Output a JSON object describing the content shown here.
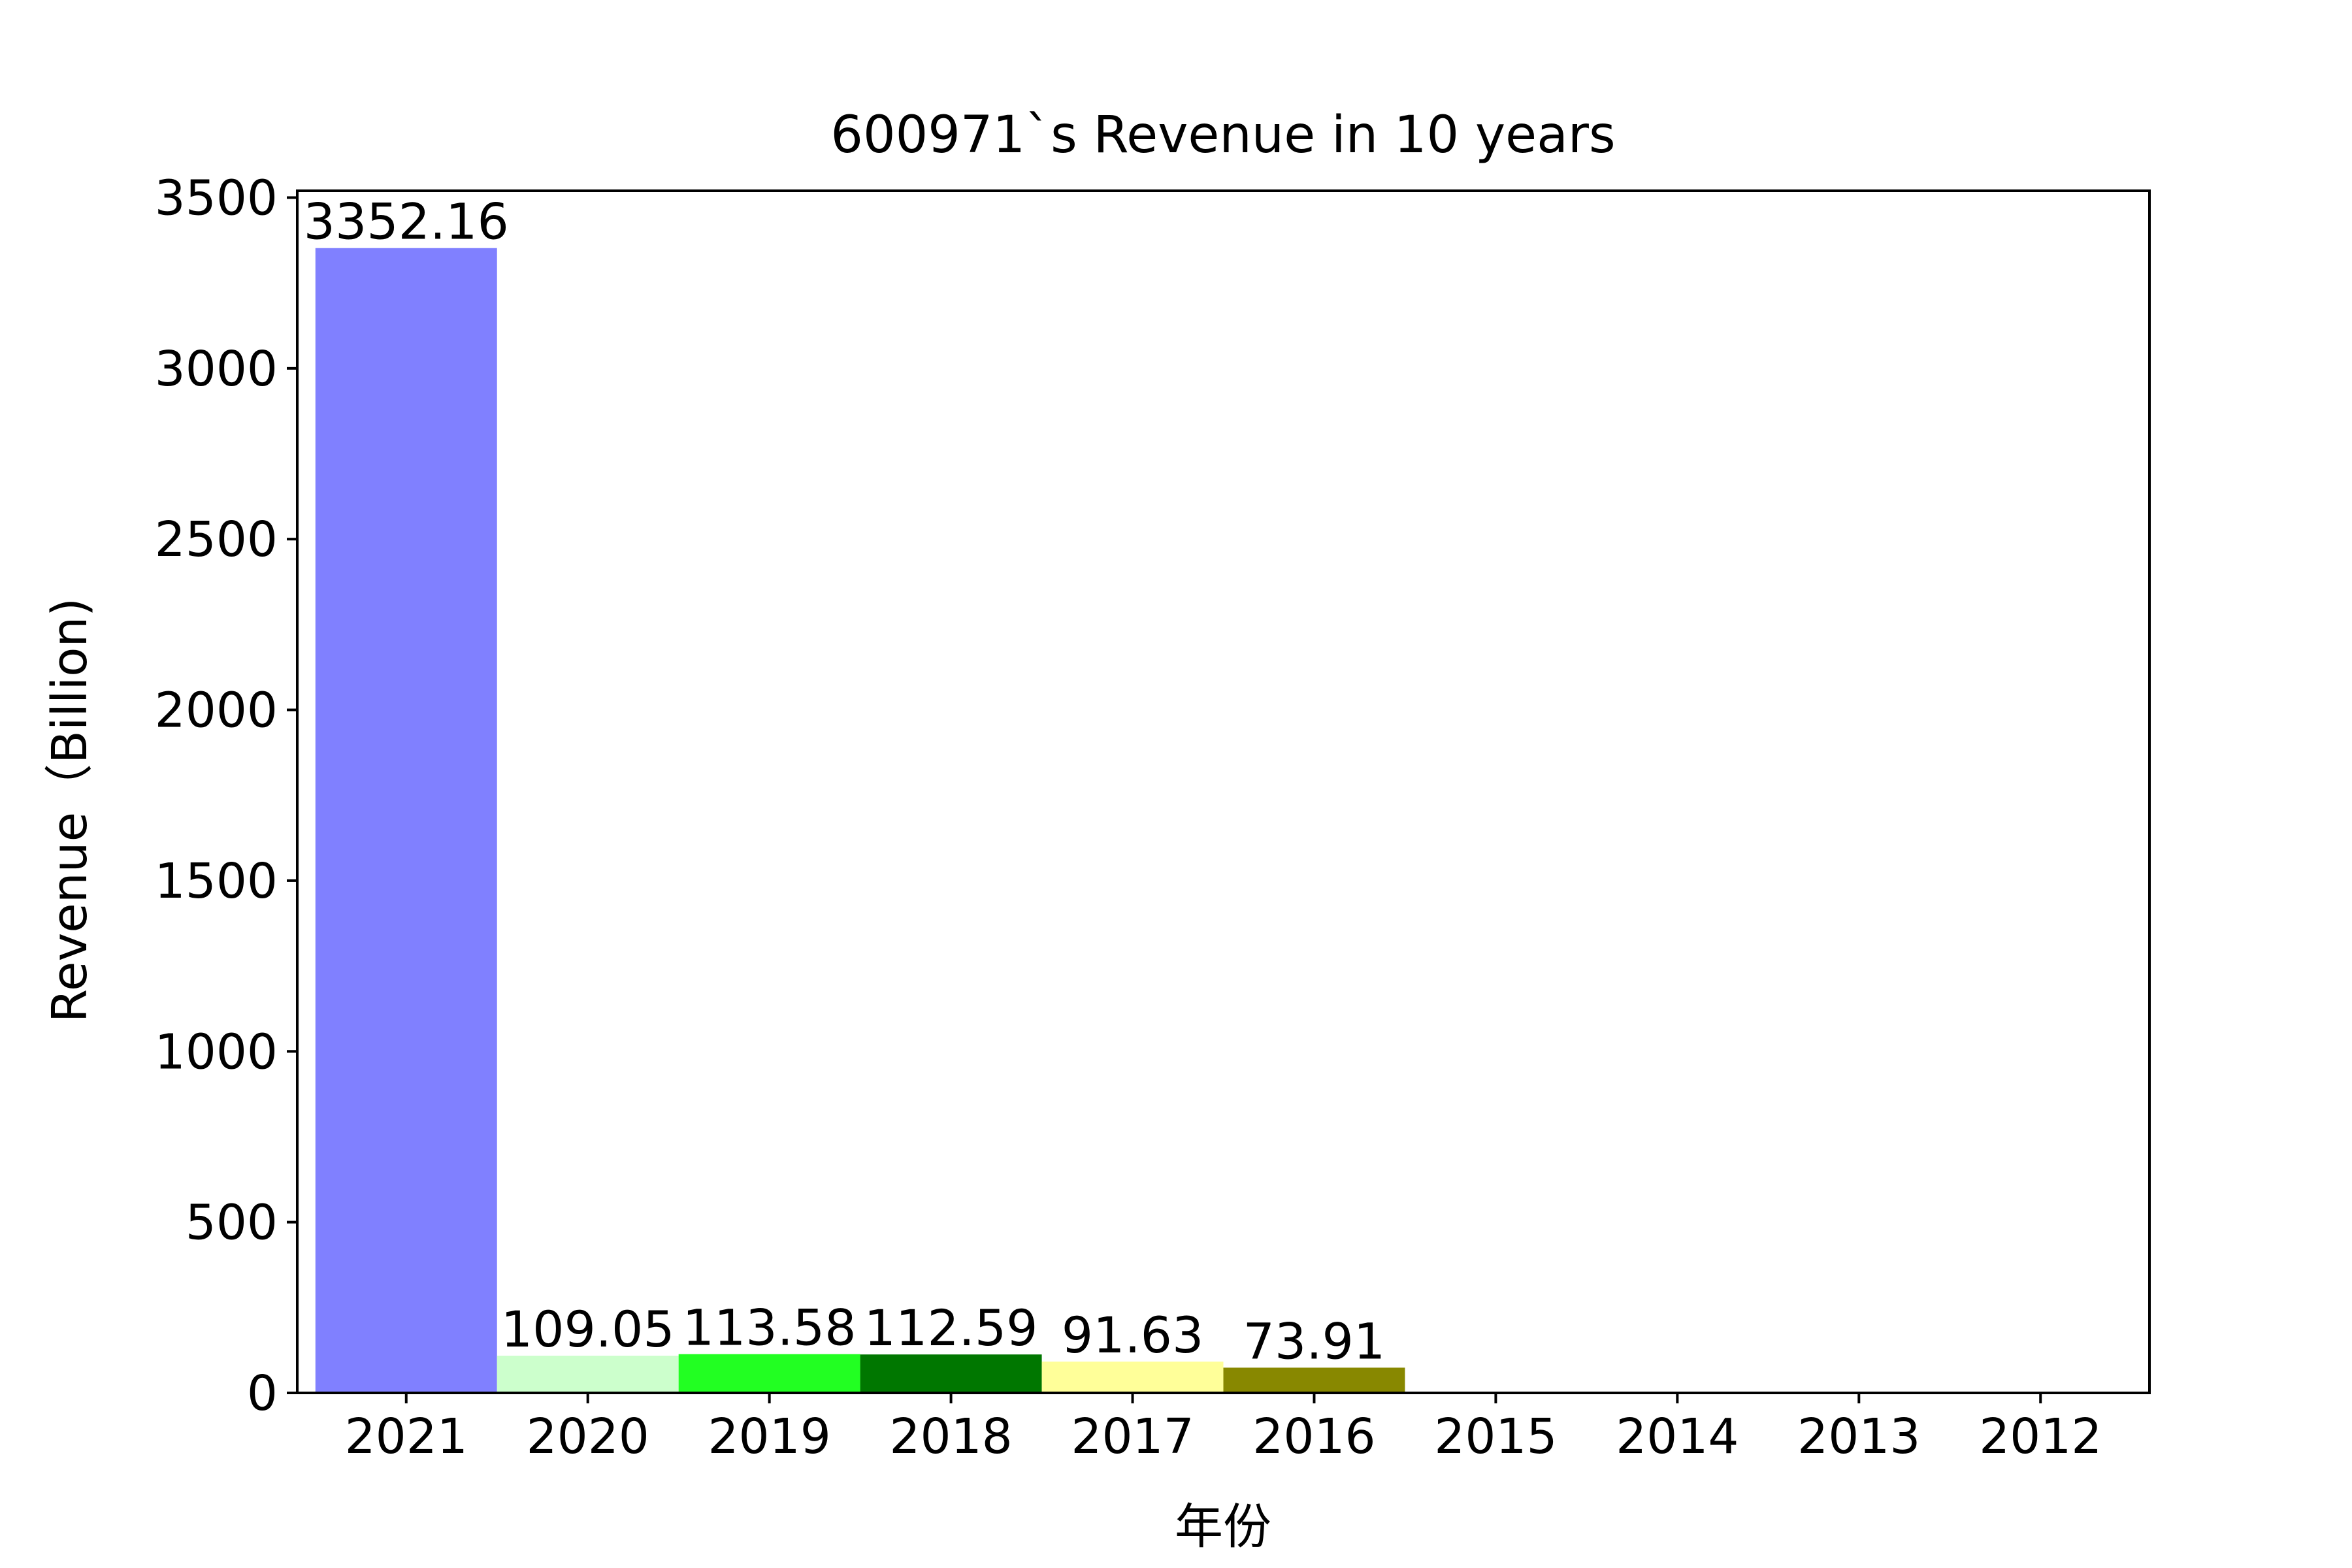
{
  "chart_data": {
    "type": "bar",
    "title": "600971`s Revenue in 10 years",
    "xlabel": "年份",
    "ylabel": "Revenue（Billion)",
    "categories": [
      "2021",
      "2020",
      "2019",
      "2018",
      "2017",
      "2016",
      "2015",
      "2014",
      "2013",
      "2012"
    ],
    "values": [
      3352.16,
      109.05,
      113.58,
      112.59,
      91.63,
      73.91,
      null,
      null,
      null,
      null
    ],
    "value_labels": [
      "3352.16",
      "109.05",
      "113.58",
      "112.59",
      "91.63",
      "73.91",
      null,
      null,
      null,
      null
    ],
    "colors": [
      "#8080ff",
      "#ccffcc",
      "#22ff22",
      "#007700",
      "#ffff99",
      "#888800"
    ],
    "ylim": [
      0,
      3520
    ],
    "yticks": [
      0,
      500,
      1000,
      1500,
      2000,
      2500,
      3000,
      3500
    ],
    "grid": false,
    "legend": "none"
  }
}
